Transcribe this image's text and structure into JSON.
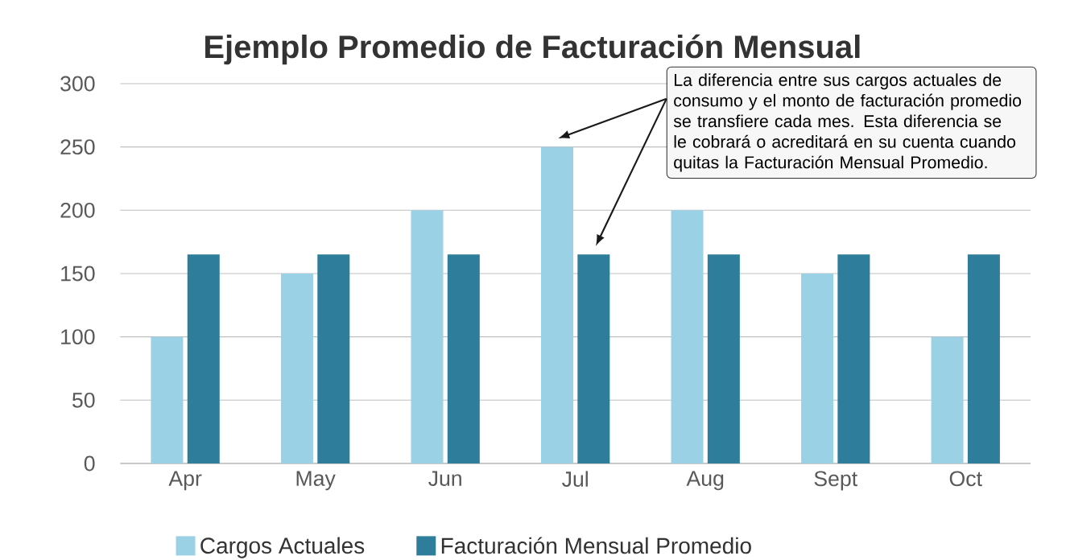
{
  "chart_data": {
    "type": "bar",
    "title": "Ejemplo Promedio de Facturación Mensual",
    "categories": [
      "Apr",
      "May",
      "Jun",
      "Jul",
      "Aug",
      "Sept",
      "Oct"
    ],
    "series": [
      {
        "name": "Cargos Actuales",
        "color": "#9bd1e5",
        "values": [
          100,
          150,
          200,
          250,
          200,
          150,
          100
        ]
      },
      {
        "name": "Facturación Mensual Promedio",
        "color": "#2e7d9b",
        "values": [
          165,
          165,
          165,
          165,
          165,
          165,
          165
        ]
      }
    ],
    "ylim": [
      0,
      300
    ],
    "yticks": [
      0,
      50,
      100,
      150,
      200,
      250,
      300
    ],
    "grid": "y",
    "legend": "bottom",
    "annotations": [
      "La diferencia entre sus cargos actuales de consumo y el monto de facturación promedio se transfiere cada mes. Esta diferencia se le cobrará o acreditará en su cuenta cuando quitas la Facturación Mensual Promedio."
    ]
  }
}
